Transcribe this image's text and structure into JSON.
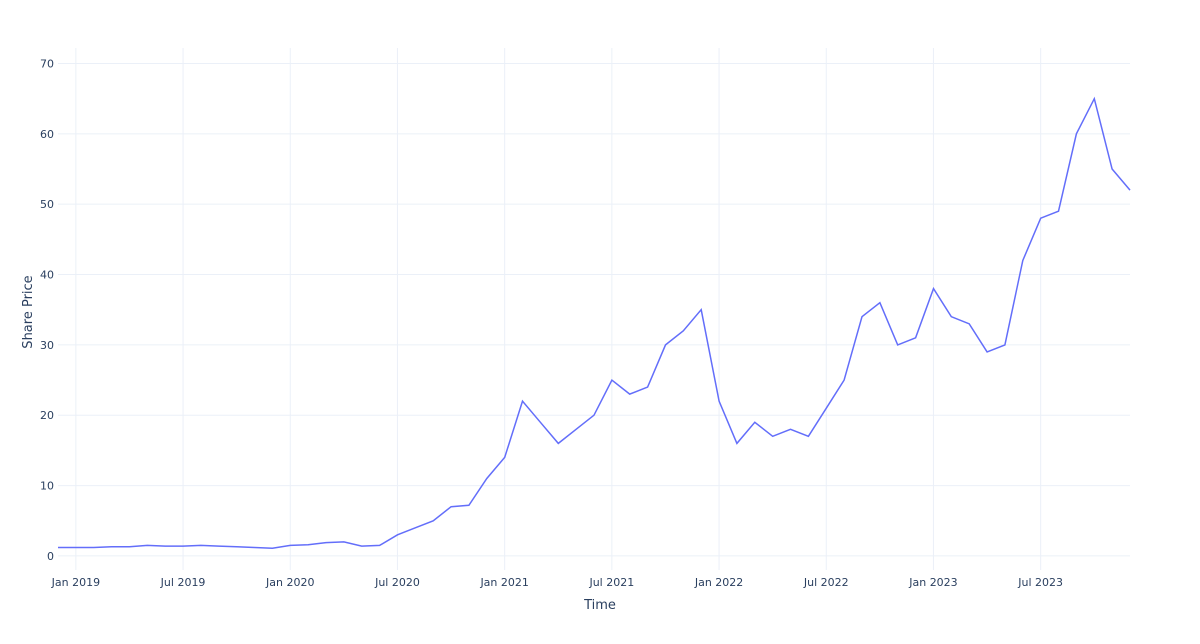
{
  "chart_data": {
    "type": "line",
    "x_label": "Time",
    "y_label": "Share Price",
    "x": [
      "2018-12",
      "2019-01",
      "2019-02",
      "2019-03",
      "2019-04",
      "2019-05",
      "2019-06",
      "2019-07",
      "2019-08",
      "2019-09",
      "2019-10",
      "2019-11",
      "2019-12",
      "2020-01",
      "2020-02",
      "2020-03",
      "2020-04",
      "2020-05",
      "2020-06",
      "2020-07",
      "2020-08",
      "2020-09",
      "2020-10",
      "2020-11",
      "2020-12",
      "2021-01",
      "2021-02",
      "2021-03",
      "2021-04",
      "2021-05",
      "2021-06",
      "2021-07",
      "2021-08",
      "2021-09",
      "2021-10",
      "2021-11",
      "2021-12",
      "2022-01",
      "2022-02",
      "2022-03",
      "2022-04",
      "2022-05",
      "2022-06",
      "2022-07",
      "2022-08",
      "2022-09",
      "2022-10",
      "2022-11",
      "2022-12",
      "2023-01",
      "2023-02",
      "2023-03",
      "2023-04",
      "2023-05",
      "2023-06",
      "2023-07",
      "2023-08",
      "2023-09",
      "2023-10",
      "2023-11",
      "2023-12"
    ],
    "values": [
      1.2,
      1.2,
      1.2,
      1.3,
      1.3,
      1.5,
      1.4,
      1.4,
      1.5,
      1.4,
      1.3,
      1.2,
      1.1,
      1.5,
      1.6,
      1.9,
      2.0,
      1.4,
      1.5,
      3.0,
      4.0,
      5.0,
      7.0,
      7.2,
      11.0,
      14,
      22,
      19,
      16,
      18,
      20,
      25,
      23,
      24,
      30,
      32,
      35,
      22,
      16,
      19,
      17,
      18,
      17,
      21,
      25,
      34,
      36,
      30,
      31,
      38,
      34,
      33,
      29,
      30,
      42,
      48,
      49,
      60,
      65,
      55,
      52
    ],
    "color": "#636efa",
    "xlim": [
      "2018-12",
      "2023-12"
    ],
    "xticks": [
      {
        "value": "2019-01",
        "label": "Jan 2019"
      },
      {
        "value": "2019-07",
        "label": "Jul 2019"
      },
      {
        "value": "2020-01",
        "label": "Jan 2020"
      },
      {
        "value": "2020-07",
        "label": "Jul 2020"
      },
      {
        "value": "2021-01",
        "label": "Jan 2021"
      },
      {
        "value": "2021-07",
        "label": "Jul 2021"
      },
      {
        "value": "2022-01",
        "label": "Jan 2022"
      },
      {
        "value": "2022-07",
        "label": "Jul 2022"
      },
      {
        "value": "2023-01",
        "label": "Jan 2023"
      },
      {
        "value": "2023-07",
        "label": "Jul 2023"
      }
    ],
    "ylim": [
      -2,
      72.2
    ],
    "yticks": [
      0,
      10,
      20,
      30,
      40,
      50,
      60,
      70
    ],
    "grid": true
  }
}
